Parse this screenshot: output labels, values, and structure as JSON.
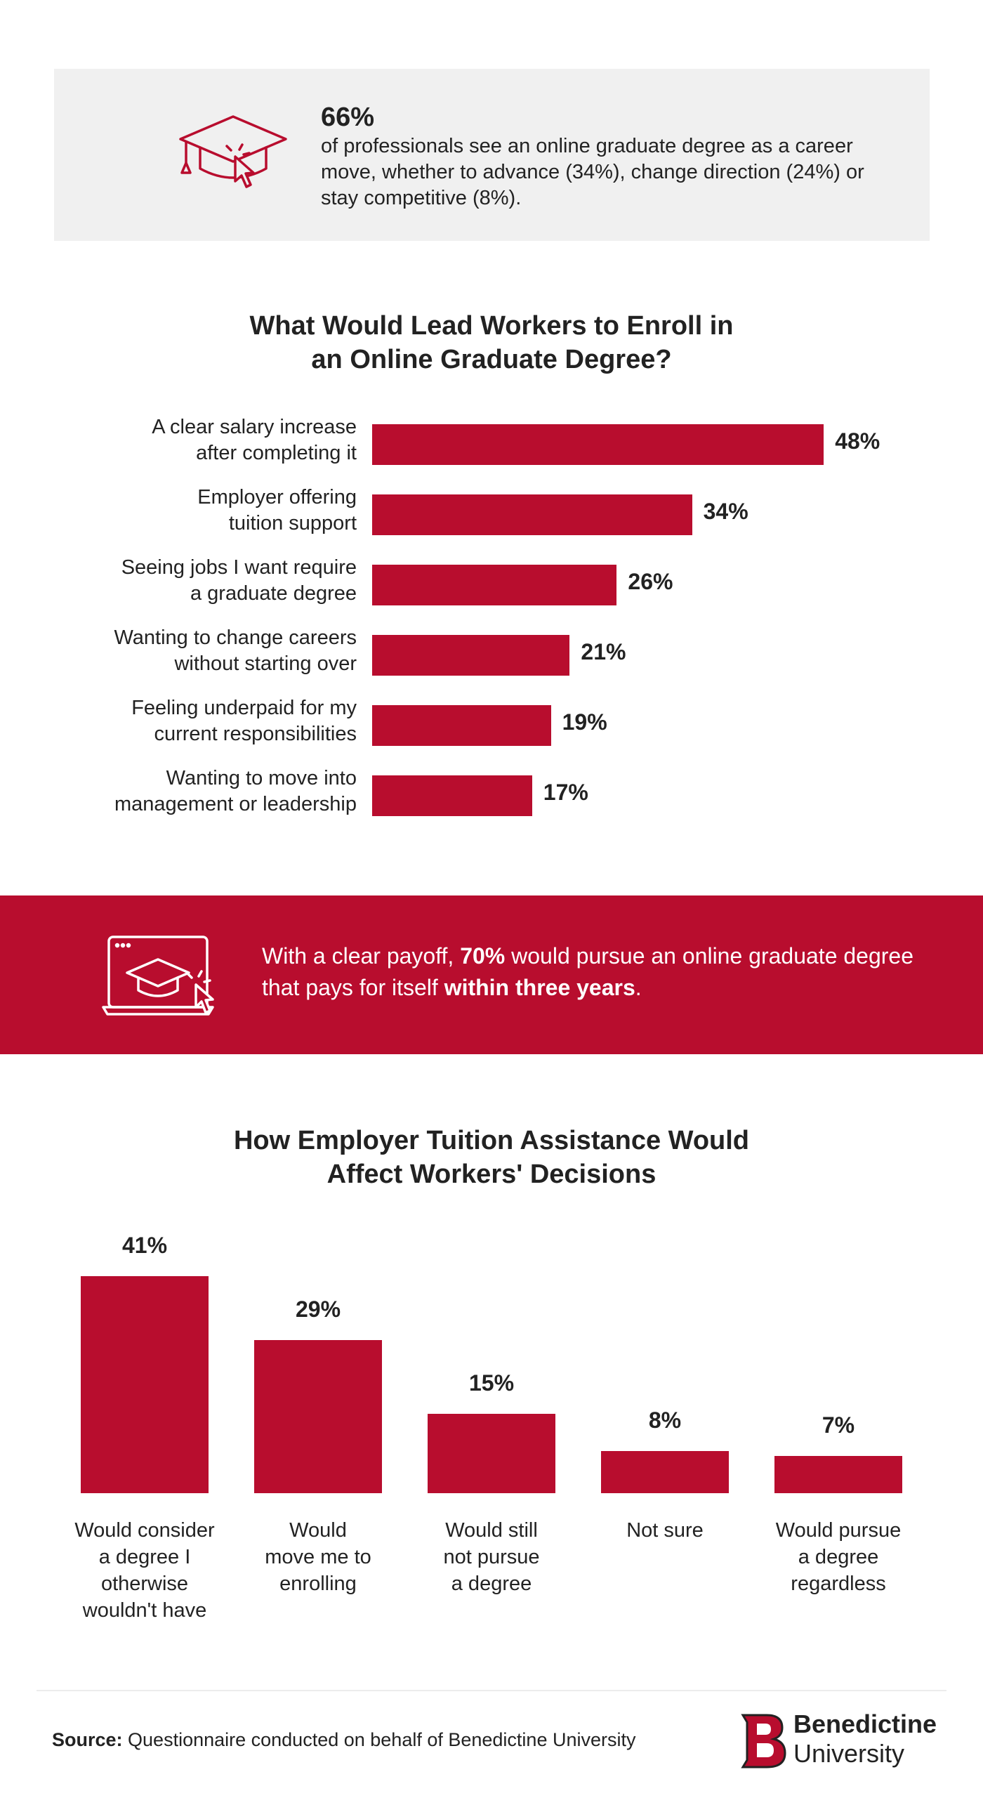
{
  "stat": {
    "percent": "66%",
    "text": "of professionals see an online graduate degree as a career move, whether to advance (34%), change direction (24%) or stay competitive (8%).",
    "icon": "graduation-cap-cursor-icon"
  },
  "banner": {
    "icon": "laptop-graduation-cap-icon",
    "text_before": "With a clear payoff, ",
    "bold1": "70%",
    "text_middle": " would pursue an online graduate degree that pays for itself ",
    "bold2": "within three years",
    "text_after": "."
  },
  "chart_data": [
    {
      "type": "bar",
      "orientation": "horizontal",
      "title": "What Would Lead Workers to Enroll in\nan Online Graduate Degree?",
      "categories": [
        "A clear salary increase\nafter completing it",
        "Employer offering\ntuition support",
        "Seeing jobs I want require\na graduate degree",
        "Wanting to change careers\nwithout starting over",
        "Feeling underpaid for my\ncurrent responsibilities",
        "Wanting to move into\nmanagement or leadership"
      ],
      "values": [
        48,
        34,
        26,
        21,
        19,
        17
      ],
      "value_labels": [
        "48%",
        "34%",
        "26%",
        "21%",
        "19%",
        "17%"
      ],
      "unit": "%",
      "color": "#b80d2e",
      "grid": false
    },
    {
      "type": "bar",
      "orientation": "vertical",
      "title": "How Employer Tuition Assistance Would\nAffect Workers' Decisions",
      "categories": [
        "Would consider\na degree I\notherwise\nwouldn't have",
        "Would\nmove me to\nenrolling",
        "Would still\nnot pursue\na degree",
        "Not sure",
        "Would pursue\na degree\nregardless"
      ],
      "values": [
        41,
        29,
        15,
        8,
        7
      ],
      "value_labels": [
        "41%",
        "29%",
        "15%",
        "8%",
        "7%"
      ],
      "unit": "%",
      "color": "#b80d2e",
      "grid": false
    }
  ],
  "footer": {
    "source_label": "Source:",
    "source_text": " Questionnaire conducted on behalf of Benedictine University",
    "logo_name": "Benedictine",
    "logo_sub": "University",
    "logo_icon": "benedictine-b-logo-icon"
  },
  "colors": {
    "accent": "#b80d2e",
    "panel": "#f0f0f0"
  }
}
